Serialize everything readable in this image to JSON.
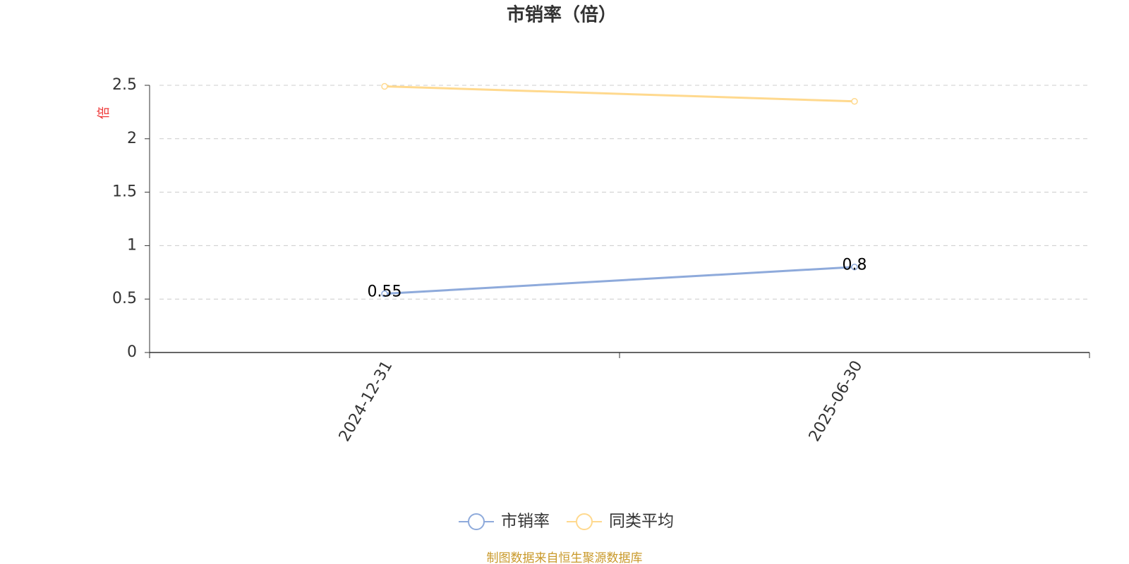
{
  "chart_data": {
    "type": "line",
    "title": "市销率（倍）",
    "y_label": "倍",
    "categories": [
      "2024-12-31",
      "2025-06-30"
    ],
    "series": [
      {
        "name": "市销率",
        "color": "#8eaadb",
        "values": [
          0.55,
          0.8
        ],
        "show_labels": true
      },
      {
        "name": "同类平均",
        "color": "#ffd98e",
        "values": [
          2.49,
          2.35
        ],
        "show_labels": false
      }
    ],
    "ylim": [
      0,
      2.5
    ],
    "yticks": [
      0,
      0.5,
      1,
      1.5,
      2,
      2.5
    ],
    "grid": true,
    "legend": "bottom",
    "source": "制图数据来自恒生聚源数据库"
  }
}
